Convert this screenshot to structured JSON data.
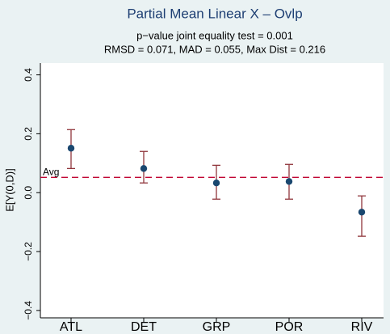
{
  "chart_data": {
    "type": "errorbar",
    "title": "Partial Mean Linear X – Ovlp",
    "subtitle": [
      "p−value joint equality test = 0.001",
      "RMSD = 0.071, MAD = 0.055, Max Dist = 0.216"
    ],
    "y_label": "E[Y(0,D)]",
    "categories": [
      "ATL",
      "DET",
      "GRP",
      "POR",
      "RIV"
    ],
    "values": [
      0.151,
      0.082,
      0.033,
      0.038,
      -0.066
    ],
    "lower": [
      0.082,
      0.033,
      -0.022,
      -0.022,
      -0.148
    ],
    "upper": [
      0.214,
      0.14,
      0.093,
      0.096,
      -0.011
    ],
    "point_color": "#1a476f",
    "bar_color": "#90353b",
    "ylim": [
      -0.425,
      0.44
    ],
    "yticks": [
      {
        "value": -0.4,
        "label": "−0.4"
      },
      {
        "value": -0.2,
        "label": "−0.2"
      },
      {
        "value": 0,
        "label": "0.0"
      },
      {
        "value": 0.2,
        "label": "0.2"
      },
      {
        "value": 0.4,
        "label": "0.4"
      }
    ],
    "reference_line": {
      "value": 0.052,
      "label": "Avg",
      "color": "#c10534"
    }
  }
}
